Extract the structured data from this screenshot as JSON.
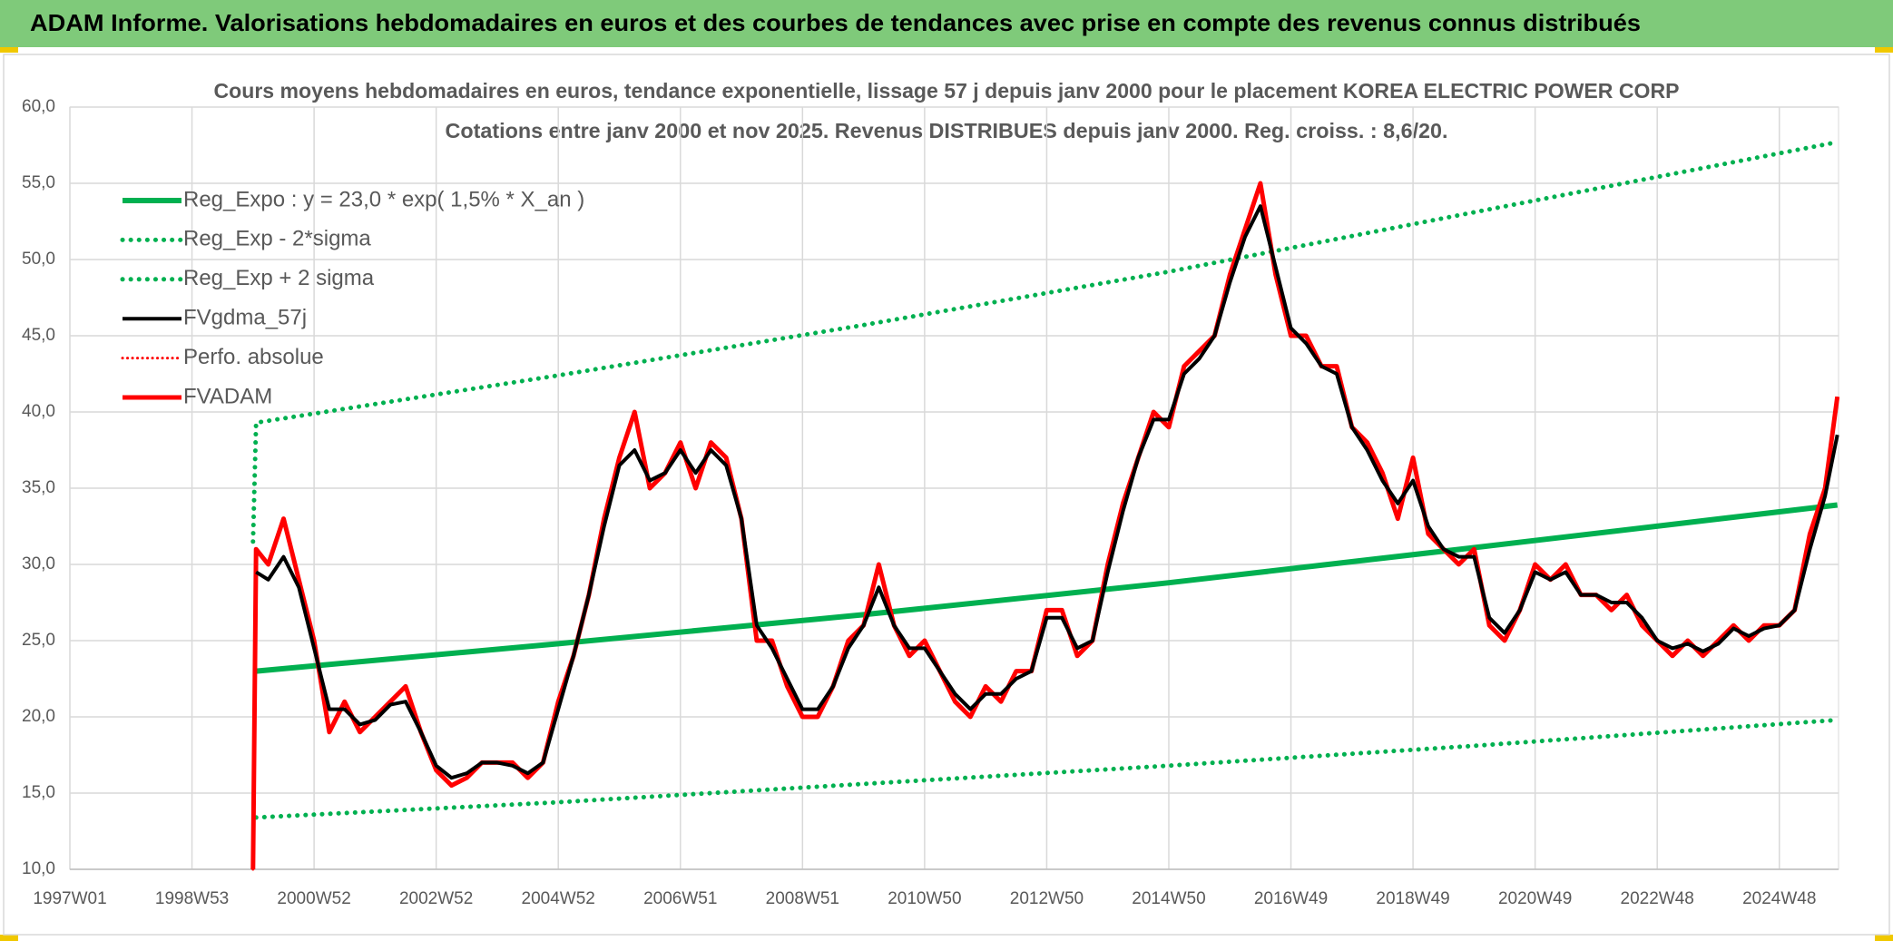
{
  "header": {
    "title": "ADAM Informe. Valorisations hebdomadaires en euros et des courbes de tendances avec prise en compte des revenus connus distribués"
  },
  "chart_data": {
    "type": "line",
    "title": "Cours moyens hebdomadaires en euros, tendance exponentielle, lissage 57 j depuis janv 2000 pour le placement KOREA ELECTRIC POWER CORP",
    "subtitle": "Cotations entre janv 2000 et nov 2025. Revenus DISTRIBUES depuis janv 2000. Reg. croiss. : 8,6/20.",
    "xlim": [
      1997.0,
      2025.97
    ],
    "xticks": [
      {
        "value": 1997.0,
        "label": "1997W01"
      },
      {
        "value": 1999.0,
        "label": "1998W53"
      },
      {
        "value": 2001.0,
        "label": "2000W52"
      },
      {
        "value": 2003.0,
        "label": "2002W52"
      },
      {
        "value": 2005.0,
        "label": "2004W52"
      },
      {
        "value": 2007.0,
        "label": "2006W51"
      },
      {
        "value": 2009.0,
        "label": "2008W51"
      },
      {
        "value": 2011.0,
        "label": "2010W50"
      },
      {
        "value": 2013.0,
        "label": "2012W50"
      },
      {
        "value": 2015.0,
        "label": "2014W50"
      },
      {
        "value": 2017.0,
        "label": "2016W49"
      },
      {
        "value": 2019.0,
        "label": "2018W49"
      },
      {
        "value": 2021.0,
        "label": "2020W49"
      },
      {
        "value": 2023.0,
        "label": "2022W48"
      },
      {
        "value": 2025.0,
        "label": "2024W48"
      }
    ],
    "ylim": [
      10,
      60
    ],
    "yticks": [
      {
        "value": 10,
        "label": "10,0"
      },
      {
        "value": 15,
        "label": "15,0"
      },
      {
        "value": 20,
        "label": "20,0"
      },
      {
        "value": 25,
        "label": "25,0"
      },
      {
        "value": 30,
        "label": "30,0"
      },
      {
        "value": 35,
        "label": "35,0"
      },
      {
        "value": 40,
        "label": "40,0"
      },
      {
        "value": 45,
        "label": "45,0"
      },
      {
        "value": 50,
        "label": "50,0"
      },
      {
        "value": 55,
        "label": "55,0"
      },
      {
        "value": 60,
        "label": "60,0"
      }
    ],
    "grid": true,
    "legend": "top-left",
    "x": [
      2000.0,
      2000.05,
      2000.25,
      2000.5,
      2000.75,
      2001.0,
      2001.25,
      2001.5,
      2001.75,
      2002.0,
      2002.25,
      2002.5,
      2002.75,
      2003.0,
      2003.25,
      2003.5,
      2003.75,
      2004.0,
      2004.25,
      2004.5,
      2004.75,
      2005.0,
      2005.25,
      2005.5,
      2005.75,
      2006.0,
      2006.25,
      2006.5,
      2006.75,
      2007.0,
      2007.25,
      2007.5,
      2007.75,
      2008.0,
      2008.25,
      2008.5,
      2008.75,
      2009.0,
      2009.25,
      2009.5,
      2009.75,
      2010.0,
      2010.25,
      2010.5,
      2010.75,
      2011.0,
      2011.25,
      2011.5,
      2011.75,
      2012.0,
      2012.25,
      2012.5,
      2012.75,
      2013.0,
      2013.25,
      2013.5,
      2013.75,
      2014.0,
      2014.25,
      2014.5,
      2014.75,
      2015.0,
      2015.25,
      2015.5,
      2015.75,
      2016.0,
      2016.25,
      2016.5,
      2016.75,
      2017.0,
      2017.25,
      2017.5,
      2017.75,
      2018.0,
      2018.25,
      2018.5,
      2018.75,
      2019.0,
      2019.25,
      2019.5,
      2019.75,
      2020.0,
      2020.25,
      2020.5,
      2020.75,
      2021.0,
      2021.25,
      2021.5,
      2021.75,
      2022.0,
      2022.25,
      2022.5,
      2022.75,
      2023.0,
      2023.25,
      2023.5,
      2023.75,
      2024.0,
      2024.25,
      2024.5,
      2024.75,
      2025.0,
      2025.25,
      2025.5,
      2025.75,
      2025.95
    ],
    "series": [
      {
        "name": "Reg_Expo : y = 23,0 * exp( 1,5% *  X_an )",
        "color": "#00b050",
        "style": "solid",
        "width": 6,
        "x": [
          2000.05,
          2005.0,
          2010.0,
          2015.0,
          2020.0,
          2025.95
        ],
        "values": [
          23.0,
          24.8,
          26.7,
          28.8,
          31.1,
          33.9
        ]
      },
      {
        "name": "Reg_Exp - 2*sigma",
        "color": "#00b050",
        "style": "dotted",
        "width": 5,
        "x": [
          2000.05,
          2005.0,
          2010.0,
          2015.0,
          2020.0,
          2025.95
        ],
        "values": [
          13.4,
          14.4,
          15.6,
          16.8,
          18.1,
          19.8
        ]
      },
      {
        "name": "Reg_Exp + 2 sigma",
        "color": "#00b050",
        "style": "dotted",
        "width": 5,
        "x": [
          2000.0,
          2000.05,
          2005.0,
          2010.0,
          2015.0,
          2020.0,
          2025.95
        ],
        "values": [
          31.5,
          39.3,
          42.4,
          45.7,
          49.2,
          53.1,
          57.7
        ]
      },
      {
        "name": "FVgdma_57j",
        "color": "#000000",
        "style": "solid",
        "width": 4,
        "values": [
          null,
          29.5,
          29,
          30.5,
          28.5,
          24.5,
          20.5,
          20.5,
          19.5,
          19.8,
          20.8,
          21,
          19,
          16.8,
          16,
          16.3,
          17,
          17,
          16.8,
          16.3,
          17,
          20.5,
          24,
          28,
          32.5,
          36.5,
          37.5,
          35.5,
          36,
          37.5,
          36,
          37.5,
          36.5,
          33,
          26,
          24.5,
          22.5,
          20.5,
          20.5,
          22,
          24.5,
          26,
          28.5,
          26,
          24.5,
          24.5,
          23,
          21.5,
          20.5,
          21.5,
          21.5,
          22.5,
          23,
          26.5,
          26.5,
          24.5,
          25,
          29.5,
          33.5,
          37,
          39.5,
          39.5,
          42.5,
          43.5,
          45,
          48.5,
          51.5,
          53.5,
          49.5,
          45.5,
          44.5,
          43,
          42.5,
          39,
          37.5,
          35.5,
          34,
          35.5,
          32.5,
          31,
          30.5,
          30.5,
          26.5,
          25.5,
          27,
          29.5,
          29,
          29.5,
          28,
          28,
          27.5,
          27.5,
          26.5,
          25,
          24.5,
          24.8,
          24.3,
          24.8,
          25.8,
          25.3,
          25.8,
          26,
          27,
          31,
          34.5,
          38.5
        ]
      },
      {
        "name": "Perfo. absolue",
        "color": "#ff0000",
        "style": "dotted",
        "width": 3,
        "values": [
          10,
          31,
          30,
          33,
          29,
          25,
          19,
          21,
          19,
          20,
          21,
          22,
          19,
          16.5,
          15.5,
          16,
          17,
          17,
          17,
          16,
          17,
          21,
          24,
          28,
          33,
          37,
          40,
          35,
          36,
          38,
          35,
          38,
          37,
          33,
          25,
          25,
          22,
          20,
          20,
          22,
          25,
          26,
          30,
          26,
          24,
          25,
          23,
          21,
          20,
          22,
          21,
          23,
          23,
          27,
          27,
          24,
          25,
          30,
          34,
          37,
          40,
          39,
          43,
          44,
          45,
          49,
          52,
          55,
          49,
          45,
          45,
          43,
          43,
          39,
          38,
          36,
          33,
          37,
          32,
          31,
          30,
          31,
          26,
          25,
          27,
          30,
          29,
          30,
          28,
          28,
          27,
          28,
          26,
          25,
          24,
          25,
          24,
          25,
          26,
          25,
          26,
          26,
          27,
          32,
          35,
          41
        ]
      },
      {
        "name": "FVADAM",
        "color": "#ff0000",
        "style": "solid",
        "width": 5,
        "values": [
          10,
          31,
          30,
          33,
          29,
          25,
          19,
          21,
          19,
          20,
          21,
          22,
          19,
          16.5,
          15.5,
          16,
          17,
          17,
          17,
          16,
          17,
          21,
          24,
          28,
          33,
          37,
          40,
          35,
          36,
          38,
          35,
          38,
          37,
          33,
          25,
          25,
          22,
          20,
          20,
          22,
          25,
          26,
          30,
          26,
          24,
          25,
          23,
          21,
          20,
          22,
          21,
          23,
          23,
          27,
          27,
          24,
          25,
          30,
          34,
          37,
          40,
          39,
          43,
          44,
          45,
          49,
          52,
          55,
          49,
          45,
          45,
          43,
          43,
          39,
          38,
          36,
          33,
          37,
          32,
          31,
          30,
          31,
          26,
          25,
          27,
          30,
          29,
          30,
          28,
          28,
          27,
          28,
          26,
          25,
          24,
          25,
          24,
          25,
          26,
          25,
          26,
          26,
          27,
          32,
          35,
          41
        ]
      }
    ]
  }
}
